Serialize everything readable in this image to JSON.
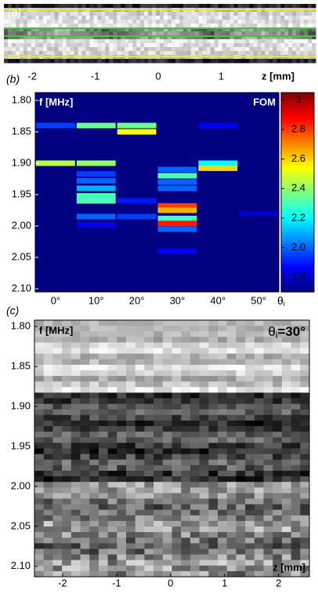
{
  "chart_data": [
    {
      "type": "image",
      "label": "(a)",
      "xlabel": "z [mm]",
      "xlim": [
        -2.45,
        2.5
      ],
      "xticks": [
        -2,
        -1,
        0,
        1
      ]
    },
    {
      "type": "heatmap",
      "label": "(b)",
      "ylabel": "f [MHz]",
      "colorbar_label": "FOM",
      "xlabel": {
        "symbol": "θ",
        "subscript": "i"
      },
      "categories": [
        "0°",
        "10°",
        "20°",
        "30°",
        "40°",
        "50°"
      ],
      "ylim": [
        1.7875,
        2.105
      ],
      "yticks": [
        {
          "value": 1.8,
          "label": "1.80"
        },
        {
          "value": 1.85,
          "label": "1.85"
        },
        {
          "value": 1.9,
          "label": "1.90"
        },
        {
          "value": 1.95,
          "label": "1.95"
        },
        {
          "value": 2.0,
          "label": "2.00"
        },
        {
          "value": 2.05,
          "label": "2.05"
        },
        {
          "value": 2.1,
          "label": "2.10"
        }
      ],
      "clim": [
        1.7,
        3.05
      ],
      "cticks": [
        1.8,
        {
          "value": 2.0,
          "label": "2.0"
        },
        2.2,
        2.4,
        2.6,
        2.8,
        3
      ],
      "cells": [
        [
          {
            "f": 1.84,
            "value": 1.95
          },
          {
            "f": 1.9,
            "value": 2.45
          }
        ],
        [
          {
            "f": 1.84,
            "value": 2.35
          },
          {
            "f": 1.9,
            "value": 2.4
          },
          {
            "f": 1.917,
            "value": 1.95
          },
          {
            "f": 1.928,
            "value": 2.0
          },
          {
            "f": 1.94,
            "value": 2.1
          },
          {
            "f": 1.952,
            "value": 2.3
          },
          {
            "f": 1.96,
            "value": 2.3
          },
          {
            "f": 1.985,
            "value": 2.0
          },
          {
            "f": 1.998,
            "value": 1.85
          }
        ],
        [
          {
            "f": 1.84,
            "value": 2.35
          },
          {
            "f": 1.85,
            "value": 2.55
          },
          {
            "f": 1.96,
            "value": 1.9
          },
          {
            "f": 1.985,
            "value": 1.95
          }
        ],
        [
          {
            "f": 1.91,
            "value": 2.0
          },
          {
            "f": 1.92,
            "value": 2.3
          },
          {
            "f": 1.93,
            "value": 2.0
          },
          {
            "f": 1.94,
            "value": 2.0
          },
          {
            "f": 1.968,
            "value": 2.8
          },
          {
            "f": 1.975,
            "value": 2.65
          },
          {
            "f": 1.988,
            "value": 2.3
          },
          {
            "f": 1.996,
            "value": 2.85
          },
          {
            "f": 2.005,
            "value": 2.0
          },
          {
            "f": 2.04,
            "value": 1.85
          }
        ],
        [
          {
            "f": 1.84,
            "value": 1.85
          },
          {
            "f": 1.9,
            "value": 2.2
          },
          {
            "f": 1.908,
            "value": 2.6
          }
        ],
        [
          {
            "f": 1.98,
            "value": 1.8
          }
        ]
      ]
    },
    {
      "type": "image",
      "label": "(c)",
      "ylabel": "f [MHz]",
      "xlabel": "z [mm]",
      "annotation": {
        "symbol": "θ",
        "subscript": "i",
        "text": "=30°"
      },
      "xlim": [
        -2.52,
        2.57
      ],
      "xticks": [
        -2,
        -1,
        0,
        1,
        2
      ],
      "ylim": [
        1.792,
        2.113
      ],
      "yticks": [
        {
          "value": 1.8,
          "label": "1.80"
        },
        {
          "value": 1.85,
          "label": "1.85"
        },
        {
          "value": 1.9,
          "label": "1.90"
        },
        {
          "value": 1.95,
          "label": "1.95"
        },
        {
          "value": 2.0,
          "label": "2.00"
        },
        {
          "value": 2.05,
          "label": "2.05"
        },
        {
          "value": 2.1,
          "label": "2.10"
        }
      ]
    }
  ]
}
